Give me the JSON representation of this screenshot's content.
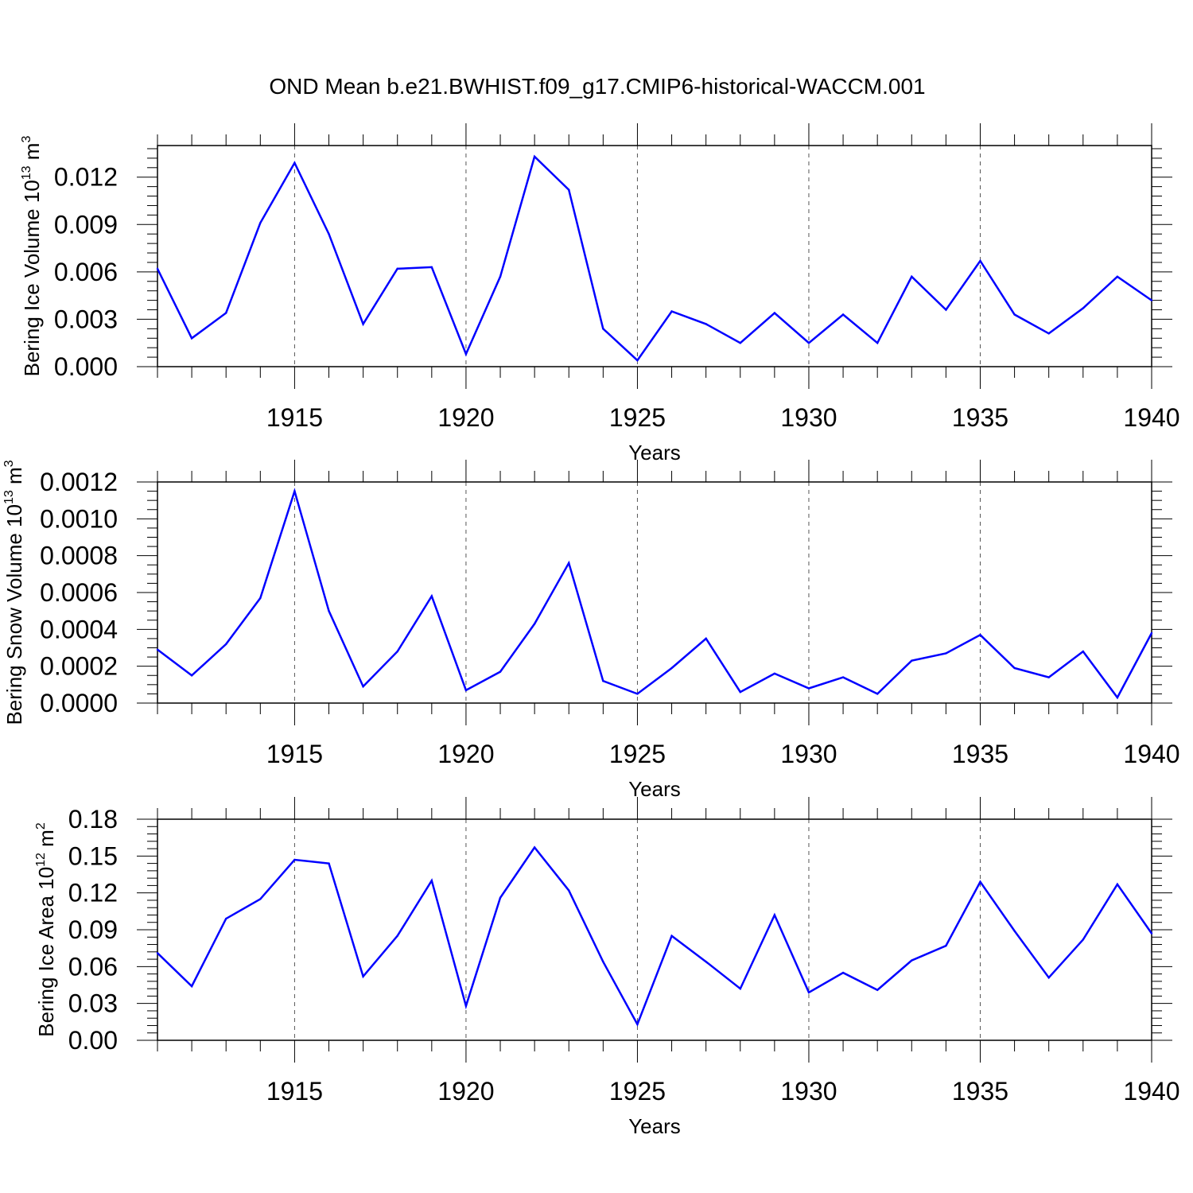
{
  "title": "OND Mean b.e21.BWHIST.f09_g17.CMIP6-historical-WACCM.001",
  "colors": {
    "line": "#0000ff",
    "axis": "#000000",
    "grid": "#555555"
  },
  "chart_data": [
    {
      "type": "line",
      "ylabel": {
        "text": "Bering Ice Volume 10",
        "sup": "13",
        "unit": "m",
        "unit_sup": "3"
      },
      "xlabel": "Years",
      "xlim": [
        1911,
        1940
      ],
      "ylim": [
        0,
        0.014
      ],
      "yticks": [
        0.0,
        0.003,
        0.006,
        0.009,
        0.012
      ],
      "ytick_labels": [
        "0.000",
        "0.003",
        "0.006",
        "0.009",
        "0.012"
      ],
      "xticks": [
        1915,
        1920,
        1925,
        1930,
        1935,
        1940
      ],
      "xtick_labels": [
        "1915",
        "1920",
        "1925",
        "1930",
        "1935",
        "1940"
      ],
      "grid": "vertical dashed at major x ticks",
      "x": [
        1911,
        1912,
        1913,
        1914,
        1915,
        1916,
        1917,
        1918,
        1919,
        1920,
        1921,
        1922,
        1923,
        1924,
        1925,
        1926,
        1927,
        1928,
        1929,
        1930,
        1931,
        1932,
        1933,
        1934,
        1935,
        1936,
        1937,
        1938,
        1939,
        1940
      ],
      "y": [
        0.0062,
        0.0018,
        0.0034,
        0.0091,
        0.0129,
        0.0084,
        0.0027,
        0.0062,
        0.0063,
        0.0008,
        0.0057,
        0.0133,
        0.0112,
        0.0024,
        0.0004,
        0.0035,
        0.0027,
        0.0015,
        0.0034,
        0.0015,
        0.0033,
        0.0015,
        0.0057,
        0.0036,
        0.0067,
        0.0033,
        0.0021,
        0.0037,
        0.0057,
        0.0042
      ]
    },
    {
      "type": "line",
      "ylabel": {
        "text": "Bering Snow Volume 10",
        "sup": "13",
        "unit": "m",
        "unit_sup": "3"
      },
      "xlabel": "Years",
      "xlim": [
        1911,
        1940
      ],
      "ylim": [
        0,
        0.0012
      ],
      "yticks": [
        0.0,
        0.0002,
        0.0004,
        0.0006,
        0.0008,
        0.001,
        0.0012
      ],
      "ytick_labels": [
        "0.0000",
        "0.0002",
        "0.0004",
        "0.0006",
        "0.0008",
        "0.0010",
        "0.0012"
      ],
      "xticks": [
        1915,
        1920,
        1925,
        1930,
        1935,
        1940
      ],
      "xtick_labels": [
        "1915",
        "1920",
        "1925",
        "1930",
        "1935",
        "1940"
      ],
      "grid": "vertical dashed at major x ticks",
      "x": [
        1911,
        1912,
        1913,
        1914,
        1915,
        1916,
        1917,
        1918,
        1919,
        1920,
        1921,
        1922,
        1923,
        1924,
        1925,
        1926,
        1927,
        1928,
        1929,
        1930,
        1931,
        1932,
        1933,
        1934,
        1935,
        1936,
        1937,
        1938,
        1939,
        1940
      ],
      "y": [
        0.00029,
        0.00015,
        0.00032,
        0.00057,
        0.00115,
        0.0005,
        9e-05,
        0.00028,
        0.00058,
        7e-05,
        0.00017,
        0.00043,
        0.00076,
        0.00012,
        5e-05,
        0.00019,
        0.00035,
        6e-05,
        0.00016,
        8e-05,
        0.00014,
        5e-05,
        0.00023,
        0.00027,
        0.00037,
        0.00019,
        0.00014,
        0.00028,
        3e-05,
        0.00038
      ]
    },
    {
      "type": "line",
      "ylabel": {
        "text": "Bering Ice Area 10",
        "sup": "12",
        "unit": "m",
        "unit_sup": "2"
      },
      "xlabel": "Years",
      "xlim": [
        1911,
        1940
      ],
      "ylim": [
        0,
        0.18
      ],
      "yticks": [
        0.0,
        0.03,
        0.06,
        0.09,
        0.12,
        0.15,
        0.18
      ],
      "ytick_labels": [
        "0.00",
        "0.03",
        "0.06",
        "0.09",
        "0.12",
        "0.15",
        "0.18"
      ],
      "xticks": [
        1915,
        1920,
        1925,
        1930,
        1935,
        1940
      ],
      "xtick_labels": [
        "1915",
        "1920",
        "1925",
        "1930",
        "1935",
        "1940"
      ],
      "grid": "vertical dashed at major x ticks",
      "x": [
        1911,
        1912,
        1913,
        1914,
        1915,
        1916,
        1917,
        1918,
        1919,
        1920,
        1921,
        1922,
        1923,
        1924,
        1925,
        1926,
        1927,
        1928,
        1929,
        1930,
        1931,
        1932,
        1933,
        1934,
        1935,
        1936,
        1937,
        1938,
        1939,
        1940
      ],
      "y": [
        0.071,
        0.044,
        0.099,
        0.115,
        0.147,
        0.144,
        0.052,
        0.085,
        0.13,
        0.028,
        0.116,
        0.157,
        0.122,
        0.064,
        0.013,
        0.085,
        0.064,
        0.042,
        0.102,
        0.039,
        0.055,
        0.041,
        0.065,
        0.077,
        0.129,
        0.089,
        0.051,
        0.082,
        0.127,
        0.087
      ]
    }
  ]
}
